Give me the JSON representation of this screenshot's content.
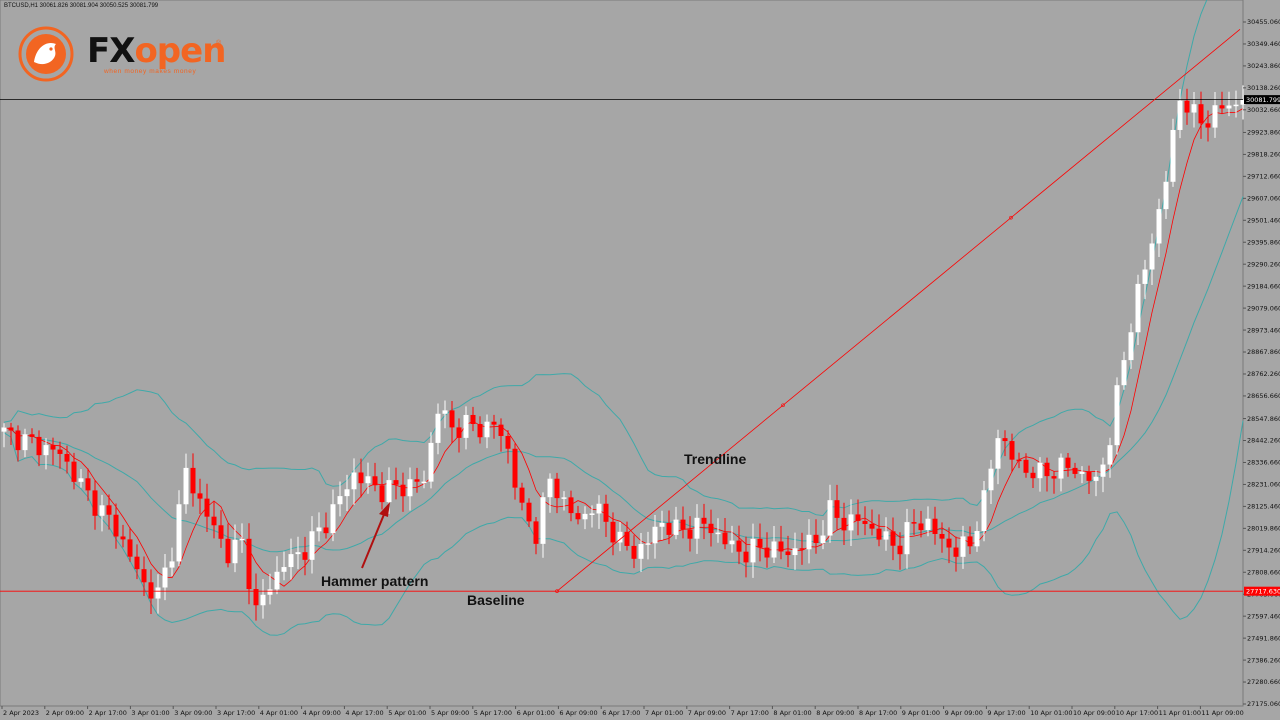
{
  "header": {
    "ohlc_text": "BTCUSD,H1  30061.826 30081.904 30050.525 30081.799"
  },
  "logo": {
    "brand_fx": "FX",
    "brand_open": "open",
    "registered": "®",
    "tagline": "when money makes money"
  },
  "annotations": {
    "trendline": "Trendline",
    "hammer": "Hammer pattern",
    "baseline": "Baseline"
  },
  "colors": {
    "background": "#a6a6a6",
    "bull_candle": "#ffffff",
    "bear_candle": "#ff0000",
    "bollinger": "#3fa9a9",
    "moving_average": "#ff0000",
    "trendline": "#ff0000",
    "baseline": "#ff0000",
    "current_price_line": "#000000",
    "arrow": "#b01010"
  },
  "chart_data": {
    "type": "candlestick",
    "symbol": "BTCUSD",
    "timeframe": "H1",
    "current_price": "30081.799",
    "baseline_price": "27717.630",
    "ylim": [
      27180.0,
      30530.0
    ],
    "y_ticks": [
      "30455.060",
      "30349.460",
      "30243.860",
      "30138.260",
      "30032.660",
      "29923.860",
      "29818.260",
      "29712.660",
      "29607.060",
      "29501.460",
      "29395.860",
      "29290.260",
      "29184.660",
      "29079.060",
      "28973.460",
      "28867.860",
      "28762.260",
      "28656.660",
      "28547.860",
      "28442.260",
      "28336.660",
      "28231.060",
      "28125.460",
      "28019.860",
      "27914.260",
      "27808.660",
      "27703.060",
      "27597.460",
      "27491.860",
      "27386.260",
      "27280.660",
      "27175.060"
    ],
    "x_ticks": [
      "2 Apr 2023",
      "2 Apr 09:00",
      "2 Apr 17:00",
      "3 Apr 01:00",
      "3 Apr 09:00",
      "3 Apr 17:00",
      "4 Apr 01:00",
      "4 Apr 09:00",
      "4 Apr 17:00",
      "5 Apr 01:00",
      "5 Apr 09:00",
      "5 Apr 17:00",
      "6 Apr 01:00",
      "6 Apr 09:00",
      "6 Apr 17:00",
      "7 Apr 01:00",
      "7 Apr 09:00",
      "7 Apr 17:00",
      "8 Apr 01:00",
      "8 Apr 09:00",
      "8 Apr 17:00",
      "9 Apr 01:00",
      "9 Apr 09:00",
      "9 Apr 17:00",
      "10 Apr 01:00",
      "10 Apr 09:00",
      "10 Apr 17:00",
      "11 Apr 01:00",
      "11 Apr 09:00"
    ],
    "close_path": [
      [
        0,
        28480
      ],
      [
        4,
        28430
      ],
      [
        8,
        28380
      ],
      [
        12,
        28180
      ],
      [
        16,
        28020
      ],
      [
        20,
        27750
      ],
      [
        22,
        27700
      ],
      [
        24,
        27920
      ],
      [
        26,
        28290
      ],
      [
        28,
        28150
      ],
      [
        30,
        28020
      ],
      [
        32,
        27900
      ],
      [
        34,
        27950
      ],
      [
        36,
        27620
      ],
      [
        38,
        27750
      ],
      [
        40,
        27850
      ],
      [
        43,
        27920
      ],
      [
        46,
        28050
      ],
      [
        50,
        28280
      ],
      [
        54,
        28200
      ],
      [
        58,
        28230
      ],
      [
        60,
        28250
      ],
      [
        62,
        28600
      ],
      [
        64,
        28500
      ],
      [
        66,
        28520
      ],
      [
        68,
        28500
      ],
      [
        70,
        28520
      ],
      [
        72,
        28400
      ],
      [
        74,
        28100
      ],
      [
        76,
        28000
      ],
      [
        78,
        28250
      ],
      [
        80,
        28150
      ],
      [
        82,
        28050
      ],
      [
        84,
        28130
      ],
      [
        86,
        28050
      ],
      [
        88,
        27960
      ],
      [
        90,
        27900
      ],
      [
        92,
        27960
      ],
      [
        94,
        28050
      ],
      [
        96,
        28010
      ],
      [
        98,
        28020
      ],
      [
        100,
        28040
      ],
      [
        102,
        27990
      ],
      [
        104,
        27930
      ],
      [
        106,
        27900
      ],
      [
        108,
        27930
      ],
      [
        110,
        27920
      ],
      [
        112,
        27900
      ],
      [
        114,
        27940
      ],
      [
        116,
        27960
      ],
      [
        118,
        28100
      ],
      [
        120,
        28050
      ],
      [
        122,
        28060
      ],
      [
        124,
        28020
      ],
      [
        126,
        27960
      ],
      [
        128,
        27940
      ],
      [
        130,
        28050
      ],
      [
        132,
        28040
      ],
      [
        134,
        27960
      ],
      [
        136,
        27910
      ],
      [
        138,
        27950
      ],
      [
        140,
        28150
      ],
      [
        142,
        28480
      ],
      [
        144,
        28360
      ],
      [
        146,
        28300
      ],
      [
        148,
        28280
      ],
      [
        150,
        28300
      ],
      [
        152,
        28320
      ],
      [
        154,
        28280
      ],
      [
        156,
        28240
      ],
      [
        158,
        28450
      ],
      [
        160,
        28850
      ],
      [
        162,
        29150
      ],
      [
        164,
        29400
      ],
      [
        166,
        29700
      ],
      [
        168,
        30100
      ],
      [
        170,
        30000
      ],
      [
        172,
        29980
      ],
      [
        174,
        30050
      ],
      [
        176,
        30060
      ],
      [
        177,
        30081.799
      ]
    ],
    "trendline_points": [
      [
        27717.63,
        "6 Apr 09:00"
      ],
      [
        30420.0,
        "11 Apr 09:00"
      ]
    ]
  }
}
